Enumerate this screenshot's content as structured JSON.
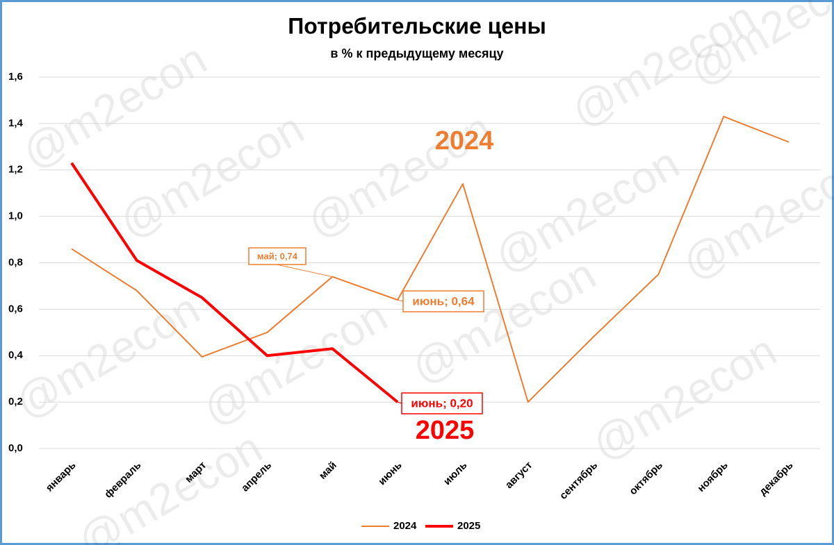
{
  "chart_data": {
    "type": "line",
    "title": "Потребительские цены",
    "subtitle": "в % к предыдущему месяцу",
    "watermark": "@m2econ",
    "categories": [
      "январь",
      "февраль",
      "март",
      "апрель",
      "май",
      "июнь",
      "июль",
      "август",
      "сентябрь",
      "октябрь",
      "ноябрь",
      "декабрь"
    ],
    "series": [
      {
        "name": "2024",
        "color": "#ed7d31",
        "values": [
          0.86,
          0.68,
          0.395,
          0.5,
          0.74,
          0.64,
          1.14,
          0.2,
          0.48,
          0.75,
          1.43,
          1.32
        ],
        "value_labels": [
          null,
          null,
          null,
          null,
          "май; 0,74",
          "июнь; 0,64",
          null,
          null,
          null,
          null,
          null,
          null
        ]
      },
      {
        "name": "2025",
        "color": "#ff0000",
        "values": [
          1.23,
          0.81,
          0.65,
          0.4,
          0.43,
          0.2,
          null,
          null,
          null,
          null,
          null,
          null
        ],
        "value_labels": [
          null,
          null,
          null,
          null,
          null,
          "июнь; 0,20",
          null,
          null,
          null,
          null,
          null,
          null
        ]
      }
    ],
    "annotations": [
      {
        "text": "2024",
        "color": "#ed7d31"
      },
      {
        "text": "2025",
        "color": "#ff0000"
      }
    ],
    "ylim": [
      0,
      1.6
    ],
    "yticks": [
      {
        "value": 0,
        "label": "0,0"
      },
      {
        "value": 0.2,
        "label": "0,2"
      },
      {
        "value": 0.4,
        "label": "0,4"
      },
      {
        "value": 0.6,
        "label": "0,6"
      },
      {
        "value": 0.8,
        "label": "0,8"
      },
      {
        "value": 1.0,
        "label": "1,0"
      },
      {
        "value": 1.2,
        "label": "1,2"
      },
      {
        "value": 1.4,
        "label": "1,4"
      },
      {
        "value": 1.6,
        "label": "1,6"
      }
    ],
    "grid": true,
    "legend": "bottom"
  }
}
